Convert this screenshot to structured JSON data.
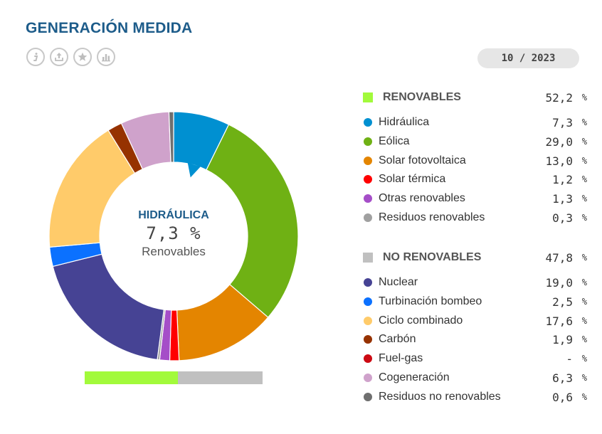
{
  "title": "GENERACIÓN MEDIDA",
  "toolbar": {
    "icons": [
      "info-icon",
      "share-icon",
      "star-icon",
      "chart-icon"
    ]
  },
  "date": "10 / 2023",
  "center": {
    "name": "HIDRÁULICA",
    "value": "7,3 %",
    "group": "Renovables"
  },
  "chart_data": {
    "type": "pie",
    "unit": "%",
    "groups": [
      {
        "name": "RENOVABLES",
        "value": 52.2,
        "value_label": "52,2",
        "color": "#a2fa3b",
        "items": [
          {
            "name": "Hidráulica",
            "value": 7.3,
            "value_label": "7,3",
            "color": "#0090d1"
          },
          {
            "name": "Eólica",
            "value": 29.0,
            "value_label": "29,0",
            "color": "#6fb114"
          },
          {
            "name": "Solar fotovoltaica",
            "value": 13.0,
            "value_label": "13,0",
            "color": "#e48500"
          },
          {
            "name": "Solar térmica",
            "value": 1.2,
            "value_label": "1,2",
            "color": "#ff0000"
          },
          {
            "name": "Otras renovables",
            "value": 1.3,
            "value_label": "1,3",
            "color": "#a54ec8"
          },
          {
            "name": "Residuos renovables",
            "value": 0.3,
            "value_label": "0,3",
            "color": "#a0a0a0"
          }
        ]
      },
      {
        "name": "NO RENOVABLES",
        "value": 47.8,
        "value_label": "47,8",
        "color": "#c0c0c0",
        "items": [
          {
            "name": "Nuclear",
            "value": 19.0,
            "value_label": "19,0",
            "color": "#464394"
          },
          {
            "name": "Turbinación bombeo",
            "value": 2.5,
            "value_label": "2,5",
            "color": "#0b71ff"
          },
          {
            "name": "Ciclo combinado",
            "value": 17.6,
            "value_label": "17,6",
            "color": "#ffcb6a"
          },
          {
            "name": "Carbón",
            "value": 1.9,
            "value_label": "1,9",
            "color": "#963200"
          },
          {
            "name": "Fuel-gas",
            "value": null,
            "value_label": "-",
            "color": "#cc0a13"
          },
          {
            "name": "Cogeneración",
            "value": 6.3,
            "value_label": "6,3",
            "color": "#cfa2cb"
          },
          {
            "name": "Residuos no renovables",
            "value": 0.6,
            "value_label": "0,6",
            "color": "#6f6f6f"
          }
        ]
      }
    ],
    "selected": "Hidráulica"
  }
}
